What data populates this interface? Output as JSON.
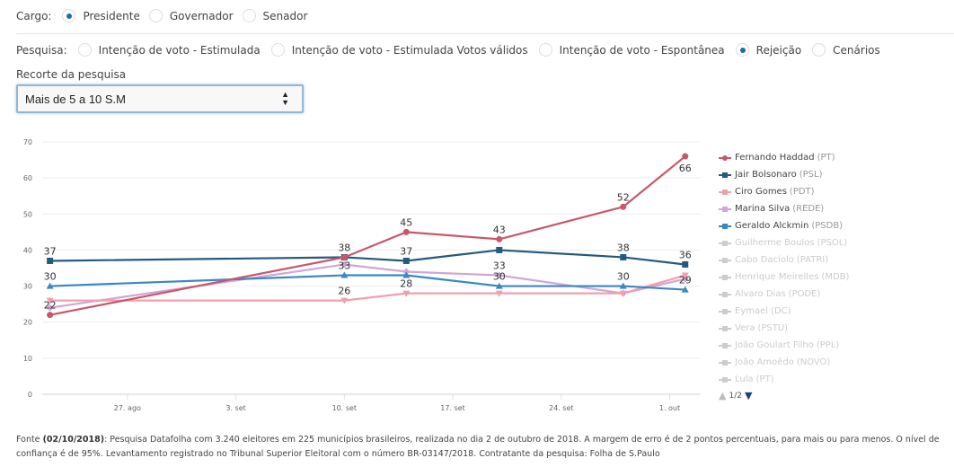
{
  "filters": {
    "cargo": {
      "label": "Cargo:",
      "options": [
        {
          "label": "Presidente",
          "selected": true
        },
        {
          "label": "Governador",
          "selected": false
        },
        {
          "label": "Senador",
          "selected": false
        }
      ]
    },
    "pesquisa": {
      "label": "Pesquisa:",
      "options": [
        {
          "label": "Intenção de voto - Estimulada",
          "selected": false
        },
        {
          "label": "Intenção de voto - Estimulada Votos válidos",
          "selected": false
        },
        {
          "label": "Intenção de voto - Espontânea",
          "selected": false
        },
        {
          "label": "Rejeição",
          "selected": true
        },
        {
          "label": "Cenários",
          "selected": false
        }
      ]
    },
    "recorte": {
      "label": "Recorte da pesquisa",
      "value": "Mais de 5 a 10 S.M"
    }
  },
  "chart_data": {
    "type": "line",
    "title": "",
    "xlabel": "",
    "ylabel": "",
    "ylim": [
      0,
      70
    ],
    "yticks": [
      0,
      10,
      20,
      30,
      40,
      50,
      60,
      70
    ],
    "x_tick_labels": [
      "27. ago",
      "3. set",
      "10. set",
      "17. set",
      "24. set",
      "1. out"
    ],
    "x_tick_days": [
      27,
      34,
      41,
      48,
      55,
      62
    ],
    "x_day_range": [
      21.5,
      64
    ],
    "x_dates": [
      "22. ago",
      "10. set",
      "14. set",
      "19. set",
      "28. set",
      "2. out"
    ],
    "x_days": [
      22,
      41,
      45,
      51,
      59,
      63
    ],
    "grid": true,
    "legend_position": "right",
    "series": [
      {
        "name": "Fernando Haddad",
        "party": "(PT)",
        "color": "#c9566b",
        "marker": "circle",
        "values": [
          22,
          38,
          45,
          43,
          52,
          66
        ],
        "labels": [
          true,
          false,
          true,
          true,
          true,
          true
        ],
        "label_below": [
          false,
          false,
          false,
          false,
          false,
          true
        ]
      },
      {
        "name": "Jair Bolsonaro",
        "party": "(PSL)",
        "color": "#245a7e",
        "marker": "square",
        "values": [
          37,
          38,
          37,
          40,
          38,
          36
        ],
        "labels": [
          true,
          true,
          true,
          false,
          true,
          true
        ],
        "label_below": [
          false,
          false,
          false,
          false,
          false,
          false
        ]
      },
      {
        "name": "Ciro Gomes",
        "party": "(PDT)",
        "color": "#f0a0ac",
        "marker": "triangle-down",
        "values": [
          26,
          26,
          28,
          28,
          28,
          33
        ],
        "labels": [
          false,
          true,
          true,
          false,
          false,
          false
        ],
        "label_below": [
          false,
          false,
          false,
          false,
          false,
          false
        ]
      },
      {
        "name": "Marina Silva",
        "party": "(REDE)",
        "color": "#d0a6d4",
        "marker": "diamond",
        "values": [
          24,
          36,
          34,
          33,
          28,
          32
        ],
        "labels": [
          false,
          false,
          false,
          true,
          false,
          false
        ],
        "label_below": [
          false,
          false,
          false,
          false,
          false,
          false
        ]
      },
      {
        "name": "Geraldo Alckmin",
        "party": "(PSDB)",
        "color": "#3b87c4",
        "marker": "triangle",
        "values": [
          30,
          33,
          33,
          30,
          30,
          29
        ],
        "labels": [
          true,
          true,
          false,
          true,
          true,
          true
        ],
        "label_below": [
          false,
          false,
          false,
          false,
          false,
          false
        ]
      }
    ],
    "hidden_series": [
      {
        "name": "Guilherme Boulos",
        "party": "(PSOL)"
      },
      {
        "name": "Cabo Daciolo",
        "party": "(PATRI)"
      },
      {
        "name": "Henrique Meirelles",
        "party": "(MDB)"
      },
      {
        "name": "Alvaro Dias",
        "party": "(PODE)"
      },
      {
        "name": "Eymael",
        "party": "(DC)"
      },
      {
        "name": "Vera",
        "party": "(PSTU)"
      },
      {
        "name": "João Goulart Filho",
        "party": "(PPL)"
      },
      {
        "name": "João Amoêdo",
        "party": "(NOVO)"
      },
      {
        "name": "Lula",
        "party": "(PT)"
      }
    ],
    "pager": "1/2"
  },
  "source": {
    "prefix": "Fonte ",
    "date": "(02/10/2018)",
    "text": ": Pesquisa Datafolha com 3.240 eleitores em 225 municípios brasileiros, realizada no dia 2 de outubro de 2018. A margem de erro é de 2 pontos percentuais, para mais ou para menos. O nível de confiança é de 95%. Levantamento registrado no Tribunal Superior Eleitoral com o número BR-03147/2018. Contratante da pesquisa: Folha de S.Paulo"
  }
}
